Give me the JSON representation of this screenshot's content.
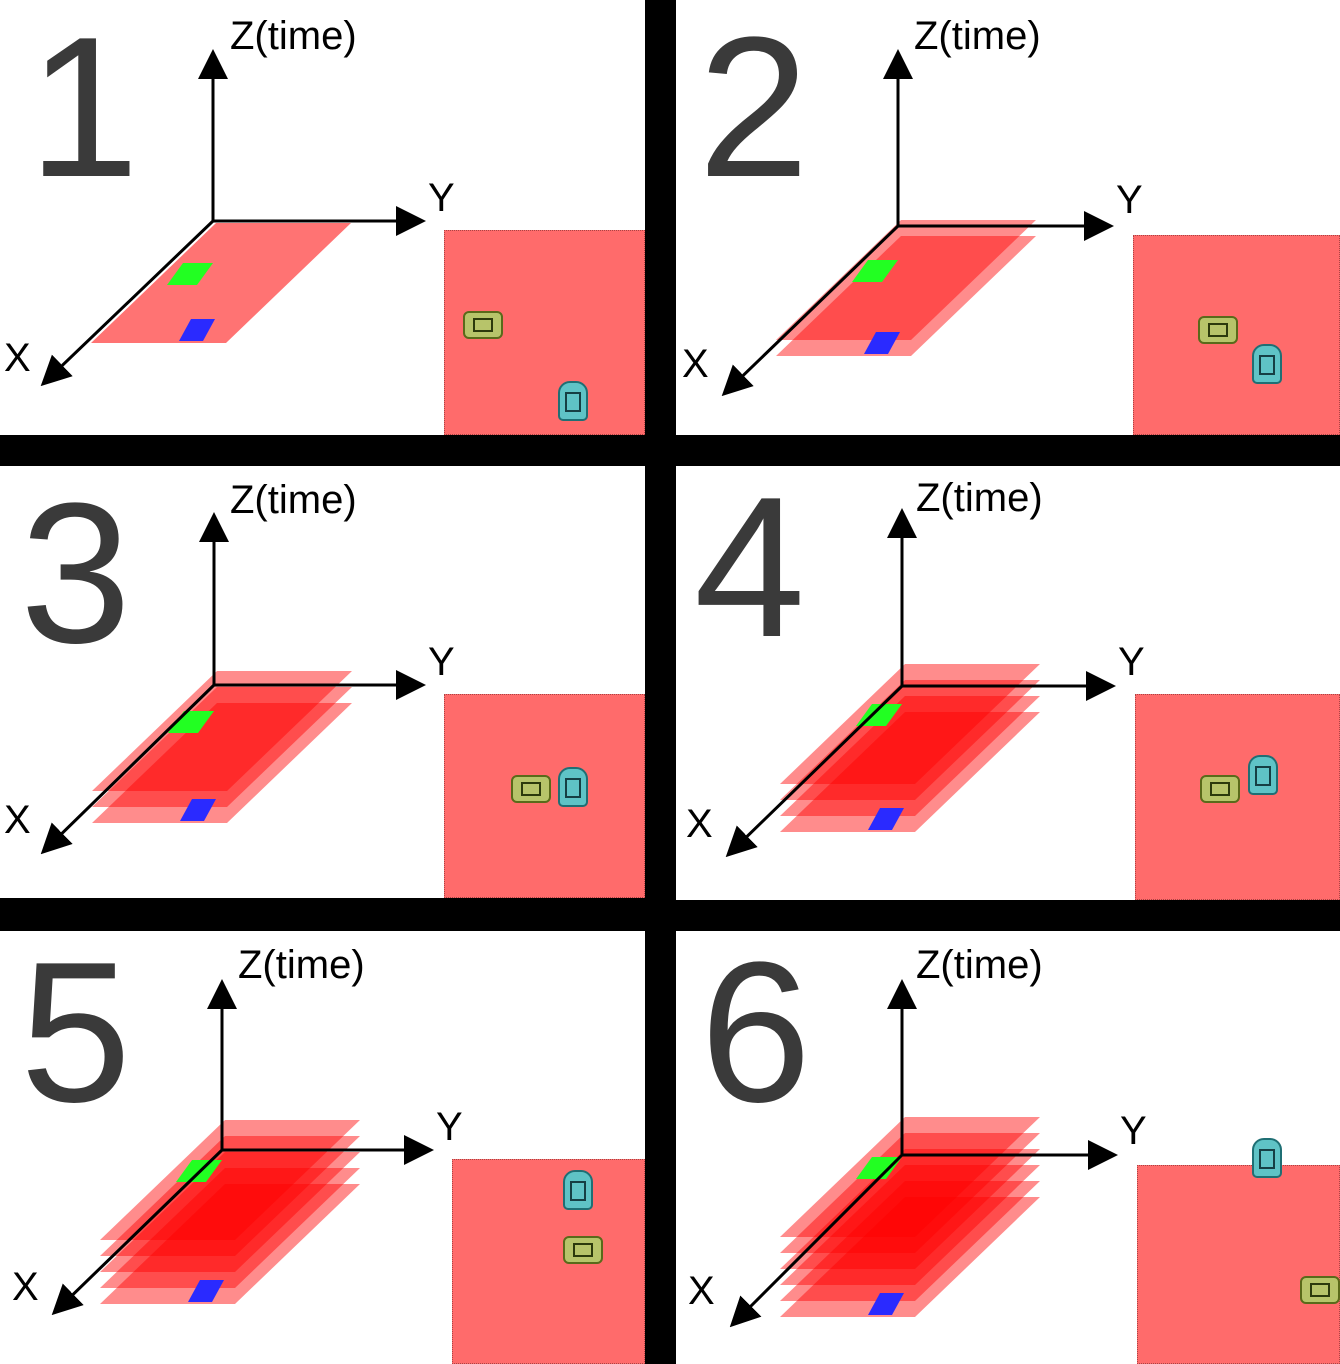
{
  "axes": {
    "z_label": "Z(time)",
    "y_label": "Y",
    "x_label": "X"
  },
  "colors": {
    "panel_bg": "#ffffff",
    "frame": "#000000",
    "layer": "#ff0000",
    "map": "#ff6b6b",
    "start_cell": "#2a2aff",
    "goal_cell": "#22ff22"
  },
  "panels": [
    {
      "step": "1",
      "layers": 1,
      "cars": [
        "green-car-icon",
        "teal-car-icon"
      ]
    },
    {
      "step": "2",
      "layers": 2,
      "cars": [
        "green-car-icon",
        "teal-car-icon"
      ]
    },
    {
      "step": "3",
      "layers": 3,
      "cars": [
        "green-car-icon",
        "teal-car-icon"
      ]
    },
    {
      "step": "4",
      "layers": 4,
      "cars": [
        "green-car-icon",
        "teal-car-icon"
      ]
    },
    {
      "step": "5",
      "layers": 5,
      "cars": [
        "green-car-icon",
        "teal-car-icon"
      ]
    },
    {
      "step": "6",
      "layers": 6,
      "cars": [
        "green-car-icon",
        "teal-car-icon"
      ]
    }
  ]
}
